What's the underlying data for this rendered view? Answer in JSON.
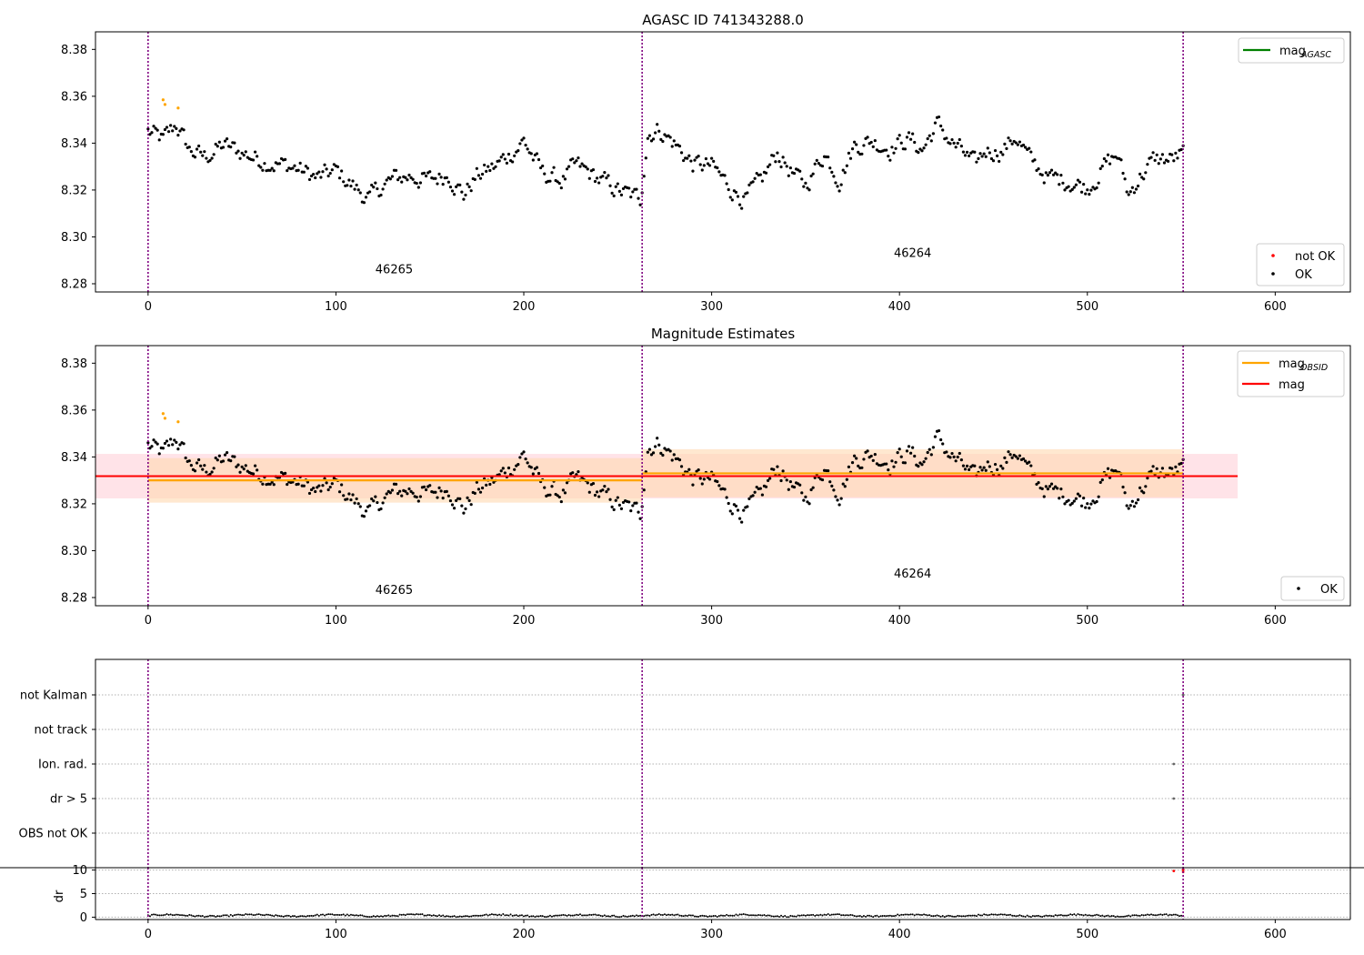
{
  "figure": {
    "title_top": "AGASC ID 741343288.0",
    "title_mid": "Magnitude Estimates"
  },
  "colors": {
    "ok": "#000000",
    "not_ok": "#ff0000",
    "obsid_line": "#ffa500",
    "obsid_band": "#ffd8b0",
    "mag_line": "#ff0000",
    "mag_band": "#ffc0cb",
    "agasc_line": "#008000",
    "obs_boundary": "#800080",
    "hline": "#b0b0b0"
  },
  "chart_data": [
    {
      "type": "scatter",
      "title": "AGASC ID 741343288.0",
      "xlim": [
        -28,
        640
      ],
      "ylim": [
        8.2765,
        8.3875
      ],
      "xticks": [
        0,
        100,
        200,
        300,
        400,
        500,
        600
      ],
      "yticks": [
        8.28,
        8.3,
        8.32,
        8.34,
        8.36,
        8.38
      ],
      "ytick_labels": [
        "8.28",
        "8.30",
        "8.32",
        "8.34",
        "8.36",
        "8.38"
      ],
      "legend_lines": {
        "position": "top-right",
        "entries": [
          {
            "name": "mag",
            "subscript": "AGASC",
            "color": "#008000"
          }
        ]
      },
      "legend_points": {
        "position": "bottom-right",
        "entries": [
          {
            "name": "not OK",
            "color": "#ff0000"
          },
          {
            "name": "OK",
            "color": "#000000"
          }
        ]
      },
      "obs_boundaries": [
        0,
        263,
        551
      ],
      "obs_labels": [
        {
          "text": "46265",
          "x": 131,
          "y": 8.2845
        },
        {
          "text": "46264",
          "x": 407,
          "y": 8.2915
        }
      ],
      "highlight_points": {
        "color": "#ffa500",
        "x": [
          8,
          9,
          16
        ],
        "y": [
          8.3585,
          8.3565,
          8.355
        ]
      },
      "series_ok": {
        "name": "OK",
        "x_start": 0,
        "x_end": 551,
        "anchors": [
          [
            0,
            8.345
          ],
          [
            8,
            8.341
          ],
          [
            15,
            8.348
          ],
          [
            22,
            8.337
          ],
          [
            30,
            8.334
          ],
          [
            40,
            8.339
          ],
          [
            50,
            8.336
          ],
          [
            60,
            8.333
          ],
          [
            70,
            8.331
          ],
          [
            80,
            8.329
          ],
          [
            90,
            8.325
          ],
          [
            100,
            8.328
          ],
          [
            110,
            8.321
          ],
          [
            118,
            8.316
          ],
          [
            125,
            8.322
          ],
          [
            132,
            8.325
          ],
          [
            140,
            8.326
          ],
          [
            150,
            8.324
          ],
          [
            160,
            8.327
          ],
          [
            168,
            8.318
          ],
          [
            175,
            8.326
          ],
          [
            185,
            8.33
          ],
          [
            195,
            8.337
          ],
          [
            200,
            8.341
          ],
          [
            210,
            8.327
          ],
          [
            220,
            8.324
          ],
          [
            228,
            8.33
          ],
          [
            235,
            8.327
          ],
          [
            245,
            8.322
          ],
          [
            255,
            8.318
          ],
          [
            262,
            8.316
          ],
          [
            266,
            8.344
          ],
          [
            272,
            8.346
          ],
          [
            280,
            8.34
          ],
          [
            290,
            8.331
          ],
          [
            300,
            8.33
          ],
          [
            310,
            8.321
          ],
          [
            318,
            8.316
          ],
          [
            326,
            8.323
          ],
          [
            335,
            8.336
          ],
          [
            345,
            8.325
          ],
          [
            350,
            8.322
          ],
          [
            360,
            8.336
          ],
          [
            368,
            8.325
          ],
          [
            376,
            8.339
          ],
          [
            385,
            8.341
          ],
          [
            395,
            8.338
          ],
          [
            405,
            8.342
          ],
          [
            412,
            8.337
          ],
          [
            420,
            8.348
          ],
          [
            428,
            8.34
          ],
          [
            435,
            8.335
          ],
          [
            440,
            8.33
          ],
          [
            446,
            8.337
          ],
          [
            455,
            8.337
          ],
          [
            462,
            8.343
          ],
          [
            470,
            8.332
          ],
          [
            480,
            8.325
          ],
          [
            490,
            8.324
          ],
          [
            500,
            8.321
          ],
          [
            510,
            8.331
          ],
          [
            516,
            8.335
          ],
          [
            522,
            8.318
          ],
          [
            528,
            8.326
          ],
          [
            536,
            8.333
          ],
          [
            545,
            8.333
          ],
          [
            551,
            8.335
          ]
        ]
      }
    },
    {
      "type": "scatter",
      "title": "Magnitude Estimates",
      "xlim": [
        -28,
        640
      ],
      "ylim": [
        8.2765,
        8.3875
      ],
      "xticks": [
        0,
        100,
        200,
        300,
        400,
        500,
        600
      ],
      "yticks": [
        8.28,
        8.3,
        8.32,
        8.34,
        8.36,
        8.38
      ],
      "ytick_labels": [
        "8.28",
        "8.30",
        "8.32",
        "8.34",
        "8.36",
        "8.38"
      ],
      "legend_lines": {
        "position": "top-right",
        "entries": [
          {
            "name": "mag",
            "subscript": "OBSID",
            "color": "#ffa500"
          },
          {
            "name": "mag",
            "subscript": "",
            "color": "#ff0000"
          }
        ]
      },
      "legend_points": {
        "position": "bottom-right",
        "entries": [
          {
            "name": "OK",
            "color": "#000000"
          }
        ]
      },
      "obs_boundaries": [
        0,
        263,
        551
      ],
      "obs_labels": [
        {
          "text": "46265",
          "x": 131,
          "y": 8.2815
        },
        {
          "text": "46264",
          "x": 407,
          "y": 8.2885
        }
      ],
      "highlight_points": {
        "color": "#ffa500",
        "x": [
          8,
          9,
          16
        ],
        "y": [
          8.3585,
          8.3565,
          8.355
        ]
      },
      "mag": {
        "x": [
          -28,
          580
        ],
        "value": 8.3318,
        "band": [
          8.3223,
          8.3413
        ]
      },
      "mag_obsid": [
        {
          "x": [
            0,
            263
          ],
          "value": 8.33,
          "band": [
            8.3205,
            8.3395
          ]
        },
        {
          "x": [
            263,
            551
          ],
          "value": 8.333,
          "band": [
            8.3228,
            8.3433
          ]
        }
      ]
    },
    {
      "type": "scatter",
      "title": "",
      "xlim": [
        -28,
        640
      ],
      "categories": [
        "OBS not OK",
        "dr > 5",
        "Ion. rad.",
        "not track",
        "not Kalman"
      ],
      "flag_points": [
        {
          "category": "Ion. rad.",
          "x": [
            546
          ]
        },
        {
          "category": "dr > 5",
          "x": [
            546
          ]
        },
        {
          "category": "not Kalman",
          "x": [
            551
          ]
        }
      ],
      "obs_boundaries": [
        0,
        263,
        551
      ]
    },
    {
      "type": "scatter",
      "title": "",
      "ylabel": "dr",
      "xlim": [
        -28,
        640
      ],
      "ylim": [
        -0.5,
        10.5
      ],
      "xticks": [
        0,
        100,
        200,
        300,
        400,
        500,
        600
      ],
      "yticks": [
        0,
        5,
        10
      ],
      "ytick_labels": [
        "0",
        "5",
        "10"
      ],
      "dr_ok": {
        "x_start": 0,
        "x_end": 551,
        "baseline": 0.35,
        "amplitude": 0.3
      },
      "dr_not_ok": {
        "x": [
          546,
          551,
          551
        ],
        "y": [
          9.8,
          9.6,
          10.1
        ]
      },
      "obs_boundaries": [
        0,
        263,
        551
      ]
    }
  ]
}
